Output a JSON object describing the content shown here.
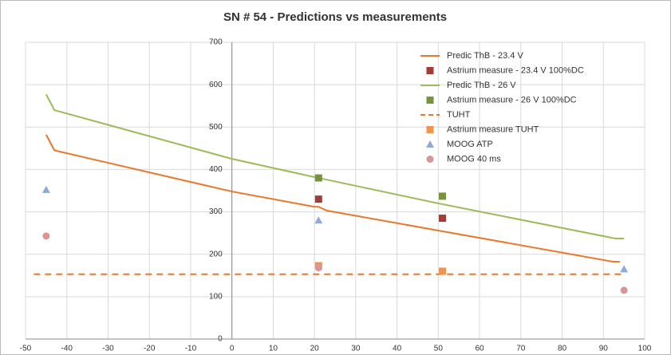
{
  "chart_data": {
    "type": "line",
    "title": "SN # 54 - Predictions vs measurements",
    "xlim": [
      -50,
      100
    ],
    "xticks": [
      -50,
      -40,
      -30,
      -20,
      -10,
      0,
      10,
      20,
      30,
      40,
      50,
      60,
      70,
      80,
      90,
      100
    ],
    "ylim": [
      0,
      700
    ],
    "yticks": [
      0,
      100,
      200,
      300,
      400,
      500,
      600,
      700
    ],
    "grid": true,
    "legend": "top-right",
    "series": [
      {
        "name": "Predic ThB - 23.4 V",
        "color": "#e9782a",
        "style": "solid",
        "x": [
          -45,
          -43,
          0,
          20,
          21,
          23,
          50,
          92,
          94
        ],
        "values": [
          482,
          445,
          348,
          312,
          312,
          303,
          256,
          183,
          182
        ]
      },
      {
        "name": "Astrium measure - 23.4 V 100%DC",
        "color": "#a33c36",
        "marker": "square",
        "x": [
          21,
          51
        ],
        "values": [
          330,
          285
        ]
      },
      {
        "name": "Predic ThB - 26 V",
        "color": "#9bbb59",
        "style": "solid",
        "x": [
          -45,
          -43,
          0,
          20,
          21,
          50,
          93,
          95
        ],
        "values": [
          577,
          540,
          425,
          382,
          380,
          320,
          237,
          237
        ]
      },
      {
        "name": "Astrium measure - 26 V 100%DC",
        "color": "#77933c",
        "marker": "square",
        "x": [
          21,
          51
        ],
        "values": [
          380,
          337
        ]
      },
      {
        "name": "TUHT",
        "color": "#e9782a",
        "style": "dashed",
        "x": [
          -48,
          95
        ],
        "values": [
          153,
          153
        ]
      },
      {
        "name": "Astrium measure TUHT",
        "color": "#f0944f",
        "marker": "square",
        "x": [
          21,
          51
        ],
        "values": [
          173,
          160
        ]
      },
      {
        "name": "MOOG ATP",
        "color": "#8eaadb",
        "marker": "triangle",
        "x": [
          -45,
          21,
          95
        ],
        "values": [
          352,
          280,
          165
        ]
      },
      {
        "name": "MOOG 40 ms",
        "color": "#d99694",
        "marker": "circle",
        "x": [
          -45,
          21,
          95
        ],
        "values": [
          243,
          168,
          115
        ]
      }
    ]
  }
}
